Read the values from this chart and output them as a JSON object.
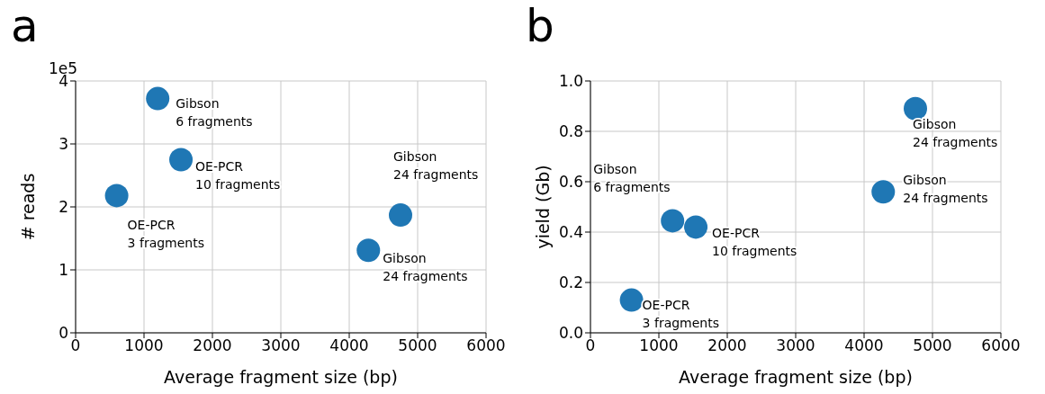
{
  "chart_data": [
    {
      "type": "scatter",
      "title": "a",
      "xlabel": "Average fragment size (bp)",
      "ylabel": "# reads",
      "x": [
        600,
        1200,
        1540,
        4280,
        4750
      ],
      "values": [
        2.18,
        3.72,
        2.75,
        1.31,
        1.87
      ],
      "color": "#1f77b4",
      "marker": "circle",
      "xlim": [
        0,
        6000
      ],
      "xticks": [
        0,
        1000,
        2000,
        3000,
        4000,
        5000,
        6000
      ],
      "ylim": [
        0,
        4
      ],
      "yticks": [
        0,
        1,
        2,
        3,
        4
      ],
      "grid": true,
      "annotations": [
        "1e5",
        {
          "text": "OE-PCR\n3 fragments",
          "x": 600,
          "y": 2.18
        },
        {
          "text": "Gibson\n6 fragments",
          "x": 1200,
          "y": 3.72
        },
        {
          "text": "OE-PCR\n10 fragments",
          "x": 1540,
          "y": 2.75
        },
        {
          "text": "Gibson\n24 fragments",
          "x": 4280,
          "y": 1.31
        },
        {
          "text": "Gibson\n24 fragments",
          "x": 4750,
          "y": 1.87
        }
      ]
    },
    {
      "type": "scatter",
      "title": "b",
      "xlabel": "Average fragment size (bp)",
      "ylabel": "yield (Gb)",
      "x": [
        600,
        1200,
        1540,
        4280,
        4750
      ],
      "values": [
        0.13,
        0.445,
        0.42,
        0.56,
        0.89
      ],
      "color": "#1f77b4",
      "marker": "circle",
      "xlim": [
        0,
        6000
      ],
      "xticks": [
        0,
        1000,
        2000,
        3000,
        4000,
        5000,
        6000
      ],
      "ylim": [
        0,
        1.0
      ],
      "yticks": [
        {
          "value": 0,
          "label": "0.0"
        },
        {
          "value": 0.2,
          "label": "0.2"
        },
        {
          "value": 0.4,
          "label": "0.4"
        },
        {
          "value": 0.6,
          "label": "0.6"
        },
        {
          "value": 0.8,
          "label": "0.8"
        },
        {
          "value": 1.0,
          "label": "1.0"
        }
      ],
      "grid": true,
      "annotations": [
        {
          "text": "OE-PCR\n3 fragments",
          "x": 600,
          "y": 0.13
        },
        {
          "text": "Gibson\n6 fragments",
          "x": 1200,
          "y": 0.445
        },
        {
          "text": "OE-PCR\n10 fragments",
          "x": 1540,
          "y": 0.42
        },
        {
          "text": "Gibson\n24 fragments",
          "x": 4280,
          "y": 0.56
        },
        {
          "text": "Gibson\n24 fragments",
          "x": 4750,
          "y": 0.89
        }
      ]
    }
  ]
}
